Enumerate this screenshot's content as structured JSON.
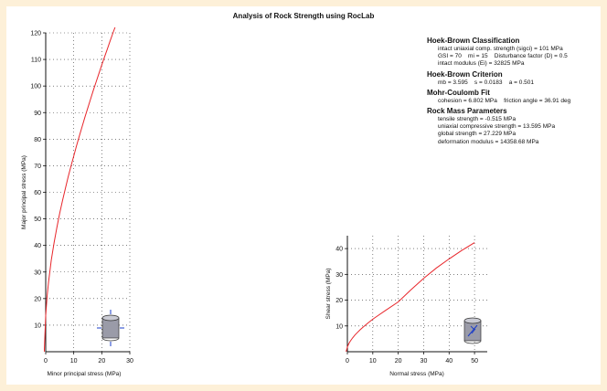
{
  "title": "Analysis of Rock Strength using RocLab",
  "info": {
    "sections": [
      {
        "heading": "Hoek-Brown Classification",
        "lines": [
          "intact uniaxial comp. strength (sigci) = 101 MPa",
          "GSI = 70    mi = 15    Disturbance factor (D) = 0.5",
          "intact modulus (Ei) = 32825 MPa"
        ]
      },
      {
        "heading": "Hoek-Brown Criterion",
        "lines": [
          "mb = 3.595    s = 0.0183    a = 0.501"
        ]
      },
      {
        "heading": "Mohr-Coulomb Fit",
        "lines": [
          "cohesion = 6.802 MPa    friction angle = 36.91 deg"
        ]
      },
      {
        "heading": "Rock Mass Parameters",
        "lines": [
          "tensile strength = -0.515 MPa",
          "uniaxial compressive strength = 13.595 MPa",
          "global strength = 27.229 MPa",
          "deformation modulus = 14358.68 MPa"
        ]
      }
    ]
  },
  "chart_data": [
    {
      "type": "line",
      "xlabel": "Minor principal stress (MPa)",
      "ylabel": "Major principal stress (MPa)",
      "xlim": [
        0,
        30
      ],
      "ylim": [
        0,
        120
      ],
      "xticks": [
        0,
        10,
        20,
        30
      ],
      "yticks": [
        10,
        20,
        30,
        40,
        50,
        60,
        70,
        80,
        90,
        100,
        110,
        120
      ],
      "grid": true,
      "series": [
        {
          "color": "#e8262b",
          "x": [
            -0.515,
            0,
            0.5,
            1,
            2,
            3,
            4,
            5,
            6,
            7,
            8,
            9,
            10,
            11,
            12,
            13,
            14,
            15,
            16,
            17,
            18,
            19,
            20,
            21,
            22,
            23,
            24,
            25,
            25.7
          ],
          "y": [
            0,
            13.6,
            20.8,
            26.2,
            34.5,
            41.1,
            46.9,
            52.1,
            56.9,
            61.4,
            65.7,
            69.8,
            73.7,
            77.5,
            81.2,
            84.8,
            88.3,
            91.7,
            95.1,
            98.4,
            101.6,
            104.8,
            107.9,
            111.0,
            114.0,
            117.0,
            120.0,
            122.9,
            124.9
          ]
        }
      ],
      "icon": "triaxial-sample-icon"
    },
    {
      "type": "line",
      "xlabel": "Normal stress (MPa)",
      "ylabel": "Shear stress (MPa)",
      "xlim": [
        0,
        55
      ],
      "ylim": [
        0,
        45
      ],
      "xticks": [
        0,
        10,
        20,
        30,
        40,
        50
      ],
      "yticks": [
        10,
        20,
        30,
        40
      ],
      "grid": true,
      "series": [
        {
          "color": "#e8262b",
          "x": [
            -0.5,
            0,
            0.5,
            1,
            2,
            3,
            4,
            5,
            6,
            8,
            10,
            12,
            15,
            20,
            25,
            30,
            35,
            40,
            45,
            50
          ],
          "y": [
            0,
            1.8,
            3.0,
            3.9,
            5.3,
            6.5,
            7.5,
            8.5,
            9.4,
            11.1,
            12.6,
            14.0,
            16.0,
            19.3,
            24.0,
            28.5,
            32.5,
            36.0,
            39.3,
            42.3
          ]
        }
      ],
      "icon": "shear-sample-icon"
    }
  ]
}
